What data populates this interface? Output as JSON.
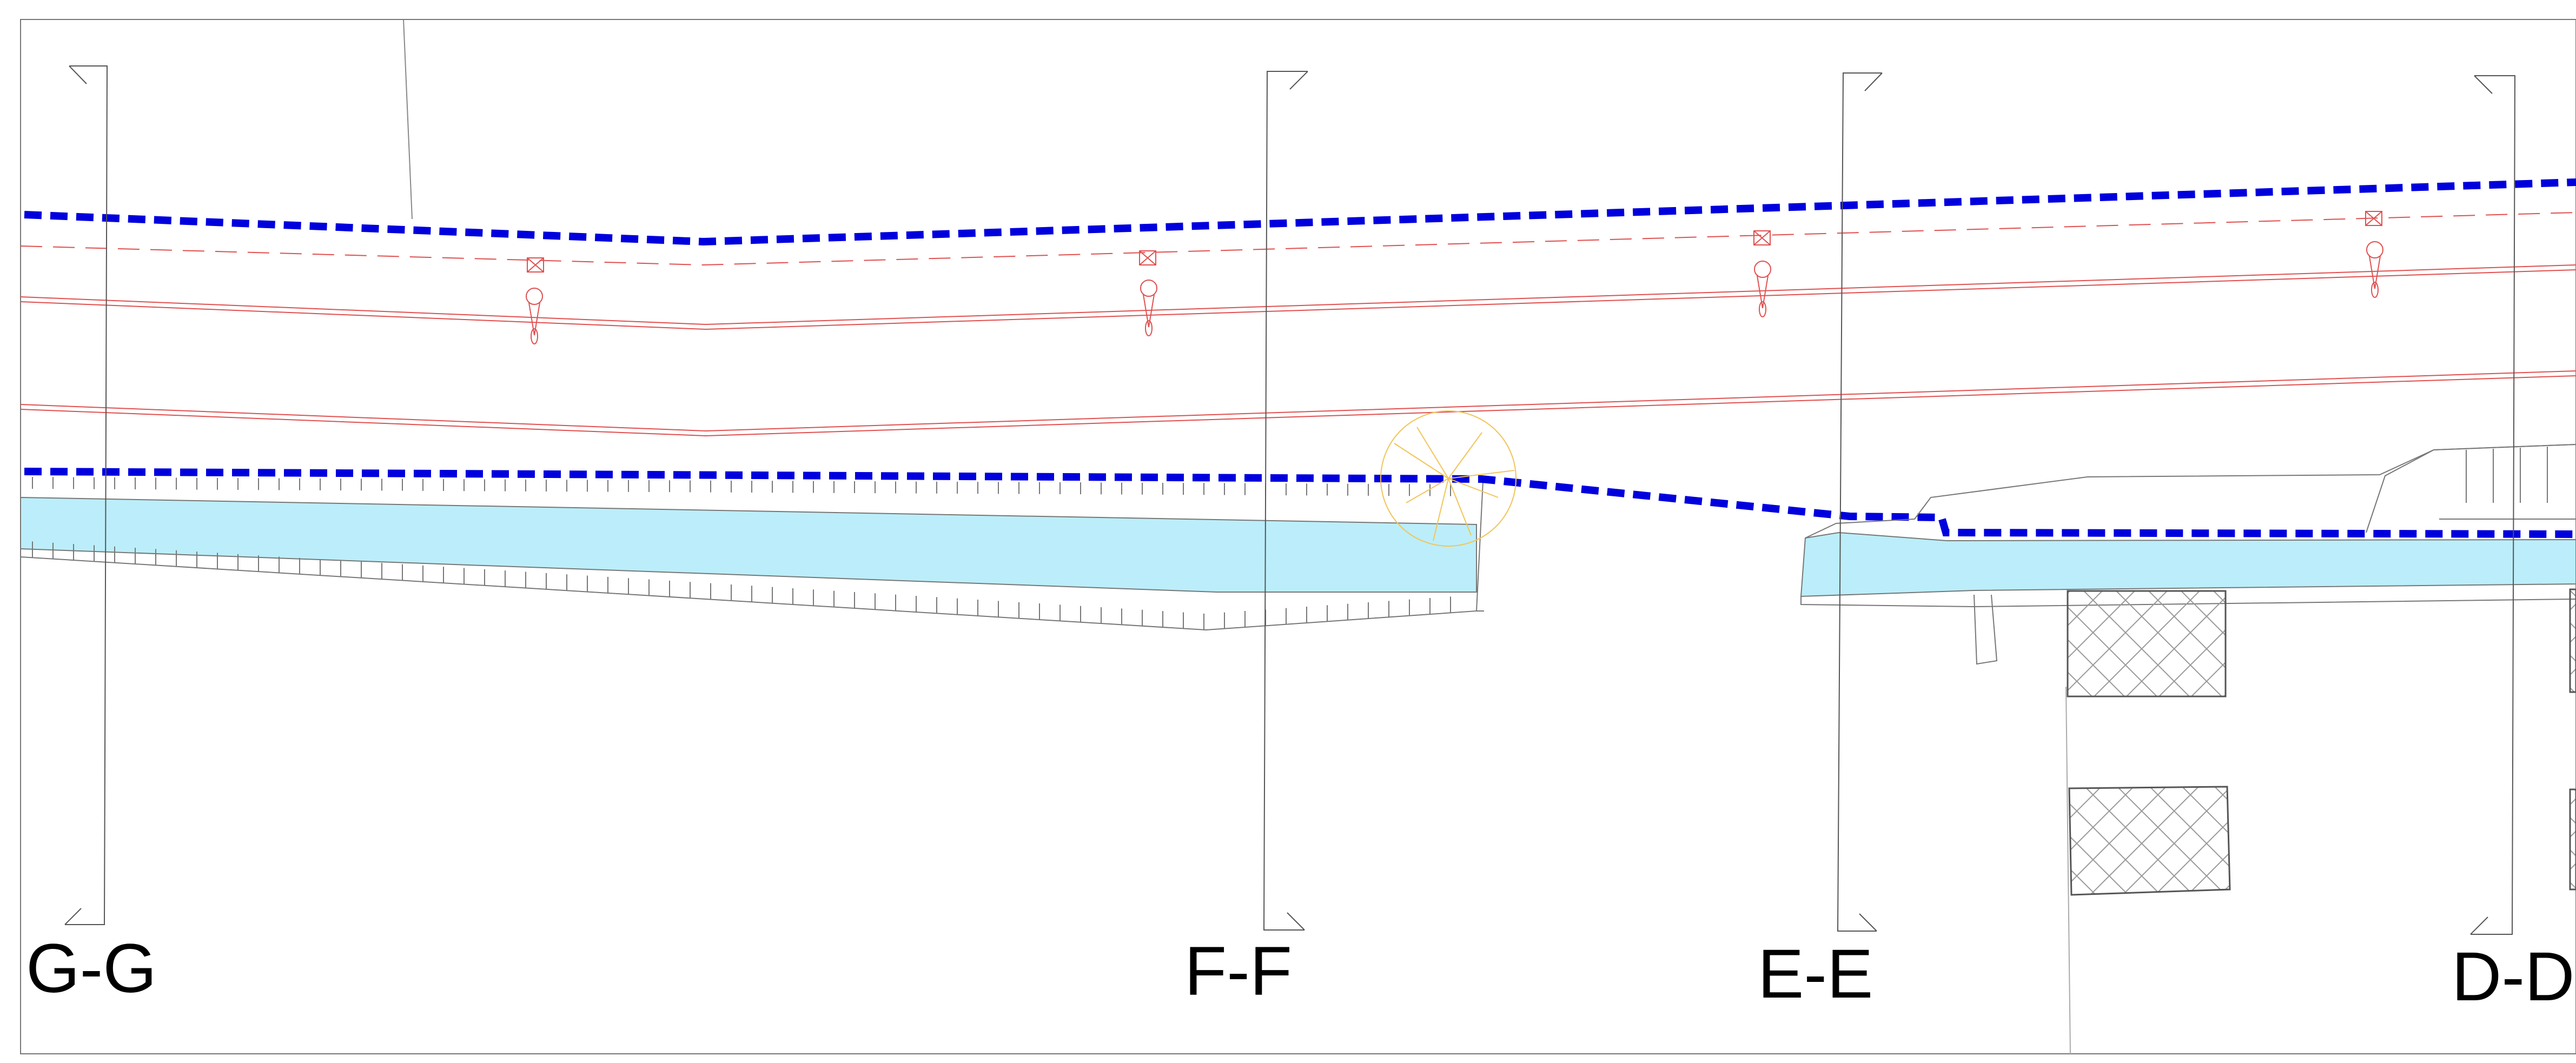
{
  "drawing": {
    "section_labels": {
      "gg": "G-G",
      "ff": "F-F",
      "ee": "E-E",
      "dd": "D-D"
    }
  },
  "colors": {
    "boundary_dashed": "#0000dd",
    "utility_lines": "#e05050",
    "water": "#bbeefa",
    "tree_symbol": "#f2c45a",
    "outline": "#000000"
  },
  "icons": [
    "street-light-icon",
    "utility-box-icon",
    "tree-icon",
    "hatched-structure"
  ]
}
